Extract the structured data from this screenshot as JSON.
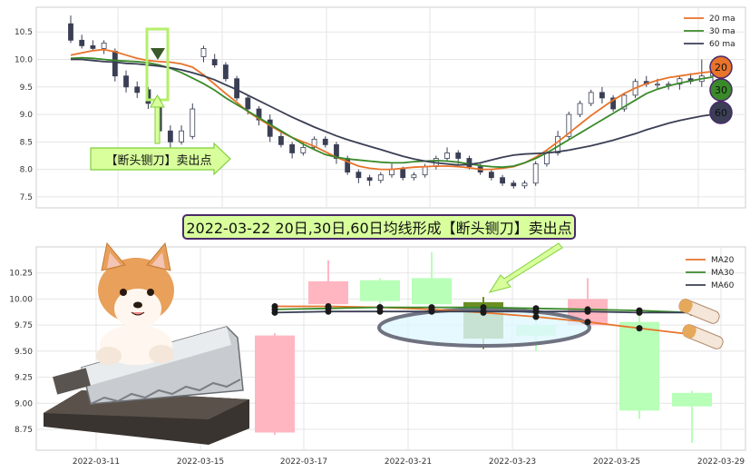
{
  "banner": {
    "text": "2022-03-22 20日,30日,60日均线形成【断头铡刀】卖出点"
  },
  "callout": {
    "text": "【断头铡刀】卖出点"
  },
  "badges": [
    {
      "label": "20",
      "color": "#e8732a"
    },
    {
      "label": "30",
      "color": "#3a8a2a"
    },
    {
      "label": "60",
      "color": "#3a3f55"
    }
  ],
  "chart_data": [
    {
      "type": "candlestick",
      "ylim": [
        7.3,
        10.95
      ],
      "y_ticks": [
        "10.5",
        "10.0",
        "9.5",
        "9.0",
        "8.5",
        "8.0",
        "7.5"
      ],
      "y_tick_values": [
        10.5,
        10.0,
        9.5,
        9.0,
        8.5,
        8.0,
        7.5
      ],
      "legend": [
        {
          "name": "20 ma",
          "color": "#e8732a"
        },
        {
          "name": "30 ma",
          "color": "#3a8a2a"
        },
        {
          "name": "60 ma",
          "color": "#3a3f55"
        }
      ],
      "series": [
        {
          "name": "20 ma",
          "color": "#e8732a",
          "values": [
            10.08,
            10.12,
            10.16,
            10.18,
            10.14,
            10.08,
            10.02,
            9.98,
            9.96,
            9.95,
            9.92,
            9.86,
            9.72,
            9.55,
            9.38,
            9.22,
            9.05,
            8.92,
            8.8,
            8.68,
            8.58,
            8.5,
            8.42,
            8.32,
            8.22,
            8.14,
            8.06,
            8.02,
            8.0,
            8.0,
            8.02,
            8.04,
            8.05,
            8.06,
            8.06,
            8.05,
            8.03,
            8.0,
            8.0,
            8.02,
            8.05,
            8.12,
            8.22,
            8.35,
            8.5,
            8.66,
            8.82,
            8.98,
            9.12,
            9.26,
            9.38,
            9.48,
            9.56,
            9.62,
            9.67,
            9.7,
            9.73,
            9.76,
            9.78
          ]
        },
        {
          "name": "30 ma",
          "color": "#3a8a2a",
          "values": [
            10.02,
            10.03,
            10.02,
            10.0,
            9.98,
            9.97,
            9.96,
            9.94,
            9.9,
            9.84,
            9.76,
            9.66,
            9.56,
            9.44,
            9.3,
            9.18,
            9.06,
            8.94,
            8.82,
            8.7,
            8.58,
            8.46,
            8.36,
            8.27,
            8.22,
            8.19,
            8.17,
            8.15,
            8.13,
            8.12,
            8.12,
            8.14,
            8.15,
            8.16,
            8.15,
            8.13,
            8.1,
            8.07,
            8.05,
            8.04,
            8.06,
            8.12,
            8.2,
            8.3,
            8.42,
            8.54,
            8.66,
            8.78,
            8.9,
            9.02,
            9.14,
            9.26,
            9.38,
            9.46,
            9.52,
            9.57,
            9.61,
            9.65,
            9.68
          ]
        },
        {
          "name": "60 ma",
          "color": "#3a3f55",
          "values": [
            10.0,
            10.0,
            9.98,
            9.96,
            9.95,
            9.93,
            9.92,
            9.9,
            9.88,
            9.85,
            9.81,
            9.76,
            9.7,
            9.63,
            9.54,
            9.45,
            9.35,
            9.25,
            9.15,
            9.05,
            8.95,
            8.86,
            8.77,
            8.69,
            8.61,
            8.54,
            8.48,
            8.42,
            8.36,
            8.3,
            8.24,
            8.19,
            8.15,
            8.12,
            8.1,
            8.08,
            8.09,
            8.12,
            8.17,
            8.22,
            8.26,
            8.28,
            8.29,
            8.3,
            8.32,
            8.35,
            8.39,
            8.43,
            8.48,
            8.53,
            8.59,
            8.65,
            8.72,
            8.78,
            8.84,
            8.89,
            8.93,
            8.97,
            9.0
          ]
        }
      ],
      "candles_open": [
        10.65,
        10.35,
        10.25,
        10.2,
        10.15,
        9.7,
        9.5,
        9.45,
        9.2,
        8.7,
        8.5,
        8.6,
        10.05,
        10.0,
        9.9,
        9.65,
        9.3,
        9.1,
        8.9,
        8.6,
        8.45,
        8.3,
        8.4,
        8.55,
        8.45,
        8.2,
        7.95,
        7.85,
        7.8,
        7.9,
        8.0,
        7.85,
        7.9,
        8.05,
        8.2,
        8.3,
        8.2,
        8.05,
        7.95,
        7.85,
        7.75,
        7.7,
        7.75,
        8.1,
        8.3,
        8.6,
        9.0,
        9.2,
        9.4,
        9.3,
        9.1,
        9.35,
        9.6,
        9.55,
        9.55,
        9.55,
        9.65,
        9.6,
        9.7
      ],
      "candles_close": [
        10.35,
        10.25,
        10.2,
        10.3,
        9.7,
        9.5,
        9.4,
        9.2,
        8.7,
        8.5,
        8.7,
        9.1,
        10.2,
        9.9,
        9.65,
        9.3,
        9.1,
        8.9,
        8.6,
        8.45,
        8.3,
        8.4,
        8.55,
        8.45,
        8.2,
        7.95,
        7.85,
        7.8,
        7.9,
        8.0,
        7.85,
        7.9,
        8.05,
        8.2,
        8.3,
        8.2,
        8.05,
        7.95,
        7.85,
        7.75,
        7.7,
        7.75,
        8.1,
        8.3,
        8.6,
        9.0,
        9.2,
        9.4,
        9.3,
        9.1,
        9.35,
        9.6,
        9.55,
        9.55,
        9.55,
        9.65,
        9.6,
        9.7,
        9.75
      ],
      "candles_high": [
        10.8,
        10.45,
        10.35,
        10.35,
        10.2,
        9.8,
        9.6,
        9.5,
        9.3,
        8.8,
        8.8,
        9.2,
        10.25,
        10.1,
        9.95,
        9.7,
        9.35,
        9.15,
        9.0,
        8.7,
        8.5,
        8.5,
        8.6,
        8.6,
        8.5,
        8.25,
        8.0,
        7.9,
        7.95,
        8.1,
        8.05,
        7.95,
        8.1,
        8.25,
        8.4,
        8.35,
        8.25,
        8.1,
        8.0,
        7.9,
        7.8,
        7.8,
        8.15,
        8.35,
        8.7,
        9.05,
        9.25,
        9.45,
        9.5,
        9.35,
        9.4,
        9.65,
        9.7,
        9.65,
        9.6,
        9.7,
        9.75,
        10.0,
        9.9
      ],
      "candles_low": [
        10.3,
        10.2,
        10.15,
        10.1,
        9.6,
        9.4,
        9.3,
        9.1,
        8.6,
        8.4,
        8.45,
        8.55,
        9.95,
        9.85,
        9.6,
        9.25,
        9.0,
        8.8,
        8.5,
        8.4,
        8.2,
        8.25,
        8.35,
        8.4,
        8.1,
        7.9,
        7.75,
        7.7,
        7.75,
        7.85,
        7.8,
        7.8,
        7.85,
        8.0,
        8.15,
        8.1,
        8.0,
        7.9,
        7.8,
        7.7,
        7.65,
        7.65,
        7.7,
        8.05,
        8.25,
        8.55,
        8.95,
        9.15,
        9.2,
        9.05,
        9.05,
        9.3,
        9.5,
        9.45,
        9.45,
        9.45,
        9.55,
        9.5,
        9.5
      ]
    },
    {
      "type": "candlestick",
      "ylim": [
        8.55,
        10.5
      ],
      "x_labels": [
        "2022-03-11",
        "2022-03-15",
        "2022-03-17",
        "2022-03-21",
        "2022-03-23",
        "2022-03-25",
        "2022-03-29"
      ],
      "y_ticks": [
        "10.25",
        "10.00",
        "9.75",
        "9.50",
        "9.25",
        "9.00",
        "8.75"
      ],
      "y_tick_values": [
        10.25,
        10.0,
        9.75,
        9.5,
        9.25,
        9.0,
        8.75
      ],
      "legend": [
        {
          "name": "MA20",
          "color": "#e8732a"
        },
        {
          "name": "MA30",
          "color": "#3a8a2a"
        },
        {
          "name": "MA60",
          "color": "#3a3f55"
        }
      ],
      "candles": [
        {
          "open": 8.72,
          "close": 9.65,
          "high": 9.67,
          "low": 8.7,
          "color": "#ffb6c1"
        },
        {
          "open": 9.95,
          "close": 10.17,
          "high": 10.37,
          "low": 9.93,
          "color": "#ffb6c1"
        },
        {
          "open": 10.18,
          "close": 9.98,
          "high": 10.2,
          "low": 9.95,
          "color": "#b8ffb8"
        },
        {
          "open": 10.2,
          "close": 9.95,
          "high": 10.45,
          "low": 9.93,
          "color": "#b8ffb8"
        },
        {
          "open": 9.97,
          "close": 9.62,
          "high": 10.02,
          "low": 9.52,
          "color": "#6b8e23"
        },
        {
          "open": 9.65,
          "close": 9.75,
          "high": 9.8,
          "low": 9.5,
          "color": "#b8ffb8"
        },
        {
          "open": 9.75,
          "close": 10.0,
          "high": 10.2,
          "low": 9.74,
          "color": "#ffb6c1"
        },
        {
          "open": 9.78,
          "close": 8.93,
          "high": 9.85,
          "low": 8.85,
          "color": "#b8ffb8"
        },
        {
          "open": 9.1,
          "close": 8.97,
          "high": 9.12,
          "low": 8.62,
          "color": "#b8ffb8"
        }
      ],
      "series": [
        {
          "name": "MA20",
          "color": "#e8732a",
          "values": [
            9.93,
            9.93,
            9.92,
            9.9,
            9.87,
            9.83,
            9.78,
            9.72,
            9.66
          ]
        },
        {
          "name": "MA30",
          "color": "#3a8a2a",
          "values": [
            9.9,
            9.91,
            9.92,
            9.92,
            9.92,
            9.91,
            9.9,
            9.89,
            9.87
          ]
        },
        {
          "name": "MA60",
          "color": "#3a3f55",
          "values": [
            9.87,
            9.88,
            9.88,
            9.88,
            9.88,
            9.88,
            9.88,
            9.87,
            9.87
          ]
        }
      ]
    }
  ]
}
